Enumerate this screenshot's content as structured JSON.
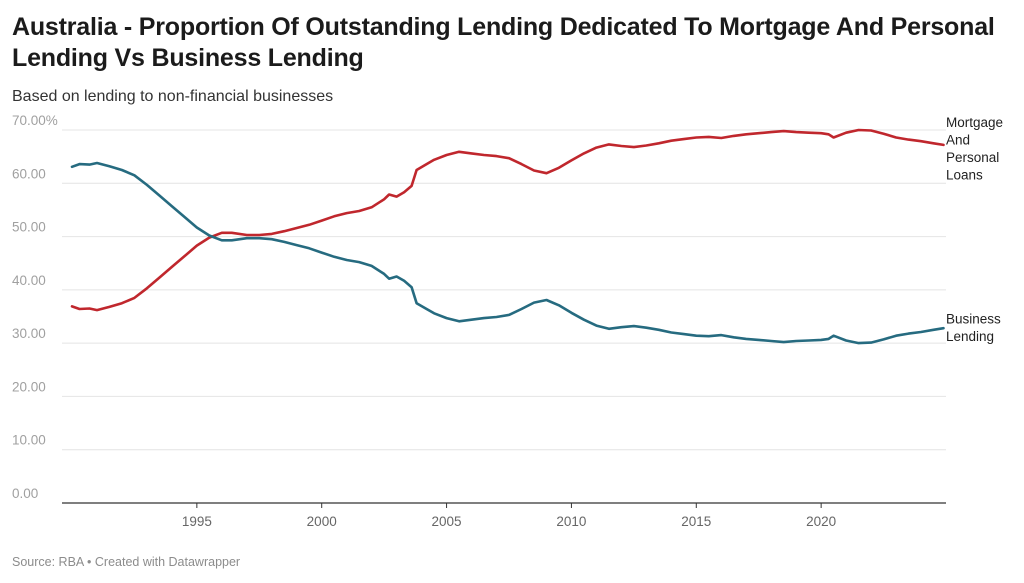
{
  "title": "Australia - Proportion Of Outstanding Lending Dedicated To Mortgage And Personal Lending Vs Business Lending",
  "subtitle": "Based on lending to non-financial businesses",
  "source": "Source: RBA • Created with Datawrapper",
  "chart_data": {
    "type": "line",
    "title": "Australia - Proportion Of Outstanding Lending Dedicated To Mortgage And Personal Lending Vs Business Lending",
    "subtitle": "Based on lending to non-financial businesses",
    "xlabel": "",
    "ylabel": "",
    "xlim": [
      1989.6,
      2025
    ],
    "ylim": [
      0,
      70
    ],
    "grid": true,
    "legend": "direct labels at right",
    "x_ticks": [
      1995,
      2000,
      2005,
      2010,
      2015,
      2020
    ],
    "y_ticks": [
      {
        "value": 0,
        "label": "0.00"
      },
      {
        "value": 10,
        "label": "10.00"
      },
      {
        "value": 20,
        "label": "20.00"
      },
      {
        "value": 30,
        "label": "30.00"
      },
      {
        "value": 40,
        "label": "40.00"
      },
      {
        "value": 50,
        "label": "50.00"
      },
      {
        "value": 60,
        "label": "60.00"
      },
      {
        "value": 70,
        "label": "70.00%"
      }
    ],
    "series": [
      {
        "name": "Mortgage And Personal Loans",
        "label_lines": [
          "Mortgage",
          "And",
          "Personal",
          "Loans"
        ],
        "color": "#c0272d",
        "points": [
          [
            1990.0,
            36.9
          ],
          [
            1990.3,
            36.4
          ],
          [
            1990.7,
            36.5
          ],
          [
            1991.0,
            36.2
          ],
          [
            1991.5,
            36.8
          ],
          [
            1992.0,
            37.5
          ],
          [
            1992.5,
            38.5
          ],
          [
            1993.0,
            40.3
          ],
          [
            1993.5,
            42.3
          ],
          [
            1994.0,
            44.3
          ],
          [
            1994.5,
            46.3
          ],
          [
            1995.0,
            48.3
          ],
          [
            1995.5,
            49.8
          ],
          [
            1996.0,
            50.7
          ],
          [
            1996.4,
            50.7
          ],
          [
            1997.0,
            50.3
          ],
          [
            1997.5,
            50.3
          ],
          [
            1998.0,
            50.5
          ],
          [
            1998.5,
            51.0
          ],
          [
            1999.0,
            51.6
          ],
          [
            1999.5,
            52.2
          ],
          [
            2000.0,
            53.0
          ],
          [
            2000.5,
            53.8
          ],
          [
            2001.0,
            54.4
          ],
          [
            2001.5,
            54.8
          ],
          [
            2002.0,
            55.5
          ],
          [
            2002.5,
            57.0
          ],
          [
            2002.7,
            57.9
          ],
          [
            2003.0,
            57.5
          ],
          [
            2003.3,
            58.3
          ],
          [
            2003.6,
            59.5
          ],
          [
            2003.8,
            62.5
          ],
          [
            2004.2,
            63.6
          ],
          [
            2004.5,
            64.4
          ],
          [
            2005.0,
            65.3
          ],
          [
            2005.5,
            65.9
          ],
          [
            2006.0,
            65.6
          ],
          [
            2006.5,
            65.3
          ],
          [
            2007.0,
            65.1
          ],
          [
            2007.5,
            64.7
          ],
          [
            2008.0,
            63.6
          ],
          [
            2008.5,
            62.4
          ],
          [
            2009.0,
            61.9
          ],
          [
            2009.5,
            62.9
          ],
          [
            2010.0,
            64.3
          ],
          [
            2010.5,
            65.6
          ],
          [
            2011.0,
            66.7
          ],
          [
            2011.5,
            67.3
          ],
          [
            2012.0,
            67.0
          ],
          [
            2012.5,
            66.8
          ],
          [
            2013.0,
            67.1
          ],
          [
            2013.5,
            67.5
          ],
          [
            2014.0,
            68.0
          ],
          [
            2014.5,
            68.3
          ],
          [
            2015.0,
            68.6
          ],
          [
            2015.5,
            68.7
          ],
          [
            2016.0,
            68.5
          ],
          [
            2016.5,
            68.9
          ],
          [
            2017.0,
            69.2
          ],
          [
            2017.5,
            69.4
          ],
          [
            2018.0,
            69.6
          ],
          [
            2018.5,
            69.8
          ],
          [
            2019.0,
            69.6
          ],
          [
            2019.5,
            69.5
          ],
          [
            2020.0,
            69.4
          ],
          [
            2020.3,
            69.2
          ],
          [
            2020.5,
            68.6
          ],
          [
            2021.0,
            69.5
          ],
          [
            2021.5,
            70.0
          ],
          [
            2022.0,
            69.9
          ],
          [
            2022.5,
            69.3
          ],
          [
            2023.0,
            68.6
          ],
          [
            2023.5,
            68.2
          ],
          [
            2024.0,
            67.9
          ],
          [
            2024.5,
            67.5
          ],
          [
            2024.9,
            67.2
          ]
        ]
      },
      {
        "name": "Business Lending",
        "label_lines": [
          "Business",
          "Lending"
        ],
        "color": "#266b80",
        "points": [
          [
            1990.0,
            63.1
          ],
          [
            1990.3,
            63.6
          ],
          [
            1990.7,
            63.5
          ],
          [
            1991.0,
            63.8
          ],
          [
            1991.5,
            63.2
          ],
          [
            1992.0,
            62.5
          ],
          [
            1992.5,
            61.5
          ],
          [
            1993.0,
            59.7
          ],
          [
            1993.5,
            57.7
          ],
          [
            1994.0,
            55.7
          ],
          [
            1994.5,
            53.7
          ],
          [
            1995.0,
            51.7
          ],
          [
            1995.5,
            50.2
          ],
          [
            1996.0,
            49.3
          ],
          [
            1996.4,
            49.3
          ],
          [
            1997.0,
            49.7
          ],
          [
            1997.5,
            49.7
          ],
          [
            1998.0,
            49.5
          ],
          [
            1998.5,
            49.0
          ],
          [
            1999.0,
            48.4
          ],
          [
            1999.5,
            47.8
          ],
          [
            2000.0,
            47.0
          ],
          [
            2000.5,
            46.2
          ],
          [
            2001.0,
            45.6
          ],
          [
            2001.5,
            45.2
          ],
          [
            2002.0,
            44.5
          ],
          [
            2002.5,
            43.0
          ],
          [
            2002.7,
            42.1
          ],
          [
            2003.0,
            42.5
          ],
          [
            2003.3,
            41.7
          ],
          [
            2003.6,
            40.5
          ],
          [
            2003.8,
            37.5
          ],
          [
            2004.2,
            36.4
          ],
          [
            2004.5,
            35.6
          ],
          [
            2005.0,
            34.7
          ],
          [
            2005.5,
            34.1
          ],
          [
            2006.0,
            34.4
          ],
          [
            2006.5,
            34.7
          ],
          [
            2007.0,
            34.9
          ],
          [
            2007.5,
            35.3
          ],
          [
            2008.0,
            36.4
          ],
          [
            2008.5,
            37.6
          ],
          [
            2009.0,
            38.1
          ],
          [
            2009.5,
            37.1
          ],
          [
            2010.0,
            35.7
          ],
          [
            2010.5,
            34.4
          ],
          [
            2011.0,
            33.3
          ],
          [
            2011.5,
            32.7
          ],
          [
            2012.0,
            33.0
          ],
          [
            2012.5,
            33.2
          ],
          [
            2013.0,
            32.9
          ],
          [
            2013.5,
            32.5
          ],
          [
            2014.0,
            32.0
          ],
          [
            2014.5,
            31.7
          ],
          [
            2015.0,
            31.4
          ],
          [
            2015.5,
            31.3
          ],
          [
            2016.0,
            31.5
          ],
          [
            2016.5,
            31.1
          ],
          [
            2017.0,
            30.8
          ],
          [
            2017.5,
            30.6
          ],
          [
            2018.0,
            30.4
          ],
          [
            2018.5,
            30.2
          ],
          [
            2019.0,
            30.4
          ],
          [
            2019.5,
            30.5
          ],
          [
            2020.0,
            30.6
          ],
          [
            2020.3,
            30.8
          ],
          [
            2020.5,
            31.4
          ],
          [
            2021.0,
            30.5
          ],
          [
            2021.5,
            30.0
          ],
          [
            2022.0,
            30.1
          ],
          [
            2022.5,
            30.7
          ],
          [
            2023.0,
            31.4
          ],
          [
            2023.5,
            31.8
          ],
          [
            2024.0,
            32.1
          ],
          [
            2024.5,
            32.5
          ],
          [
            2024.9,
            32.8
          ]
        ]
      }
    ]
  }
}
